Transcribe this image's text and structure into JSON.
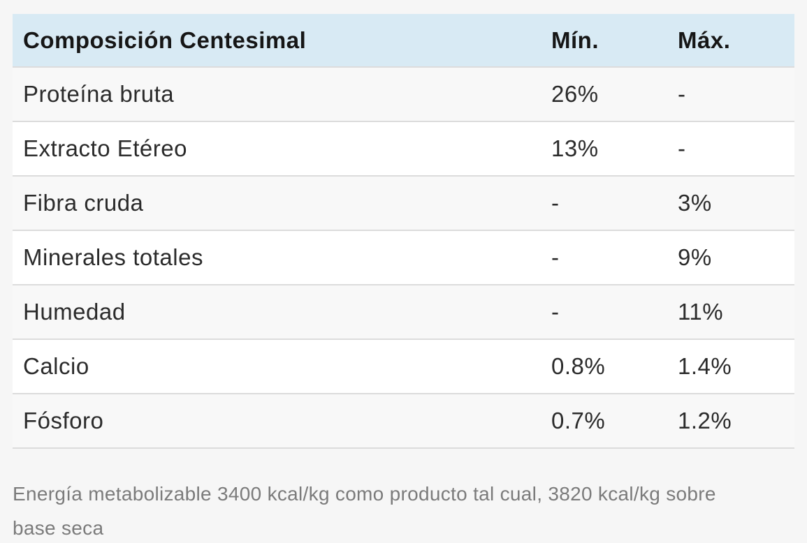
{
  "page": {
    "background_color": "#f6f6f6"
  },
  "table": {
    "header": {
      "title": "Composición Centesimal",
      "min_label": "Mín.",
      "max_label": "Máx.",
      "background_color": "#d8eaf4",
      "text_color": "#161616"
    },
    "rows": [
      {
        "name": "Proteína bruta",
        "min": "26%",
        "max": "-"
      },
      {
        "name": "Extracto Etéreo",
        "min": "13%",
        "max": "-"
      },
      {
        "name": "Fibra cruda",
        "min": "-",
        "max": "3%"
      },
      {
        "name": "Minerales totales",
        "min": "-",
        "max": "9%"
      },
      {
        "name": "Humedad",
        "min": "-",
        "max": "11%"
      },
      {
        "name": "Calcio",
        "min": "0.8%",
        "max": "1.4%"
      },
      {
        "name": "Fósforo",
        "min": "0.7%",
        "max": "1.2%"
      }
    ],
    "zebra_color": "#f8f8f8",
    "separator_color": "#dcdcdc"
  },
  "footer": {
    "text": "Energía metabolizable 3400 kcal/kg como producto tal cual, 3820 kcal/kg sobre base seca",
    "lines": [
      "Energía metabolizable 3400 kcal/kg como producto tal cual, 3820 kcal/kg sobre",
      "base seca"
    ],
    "text_color": "#7b7b7b"
  }
}
